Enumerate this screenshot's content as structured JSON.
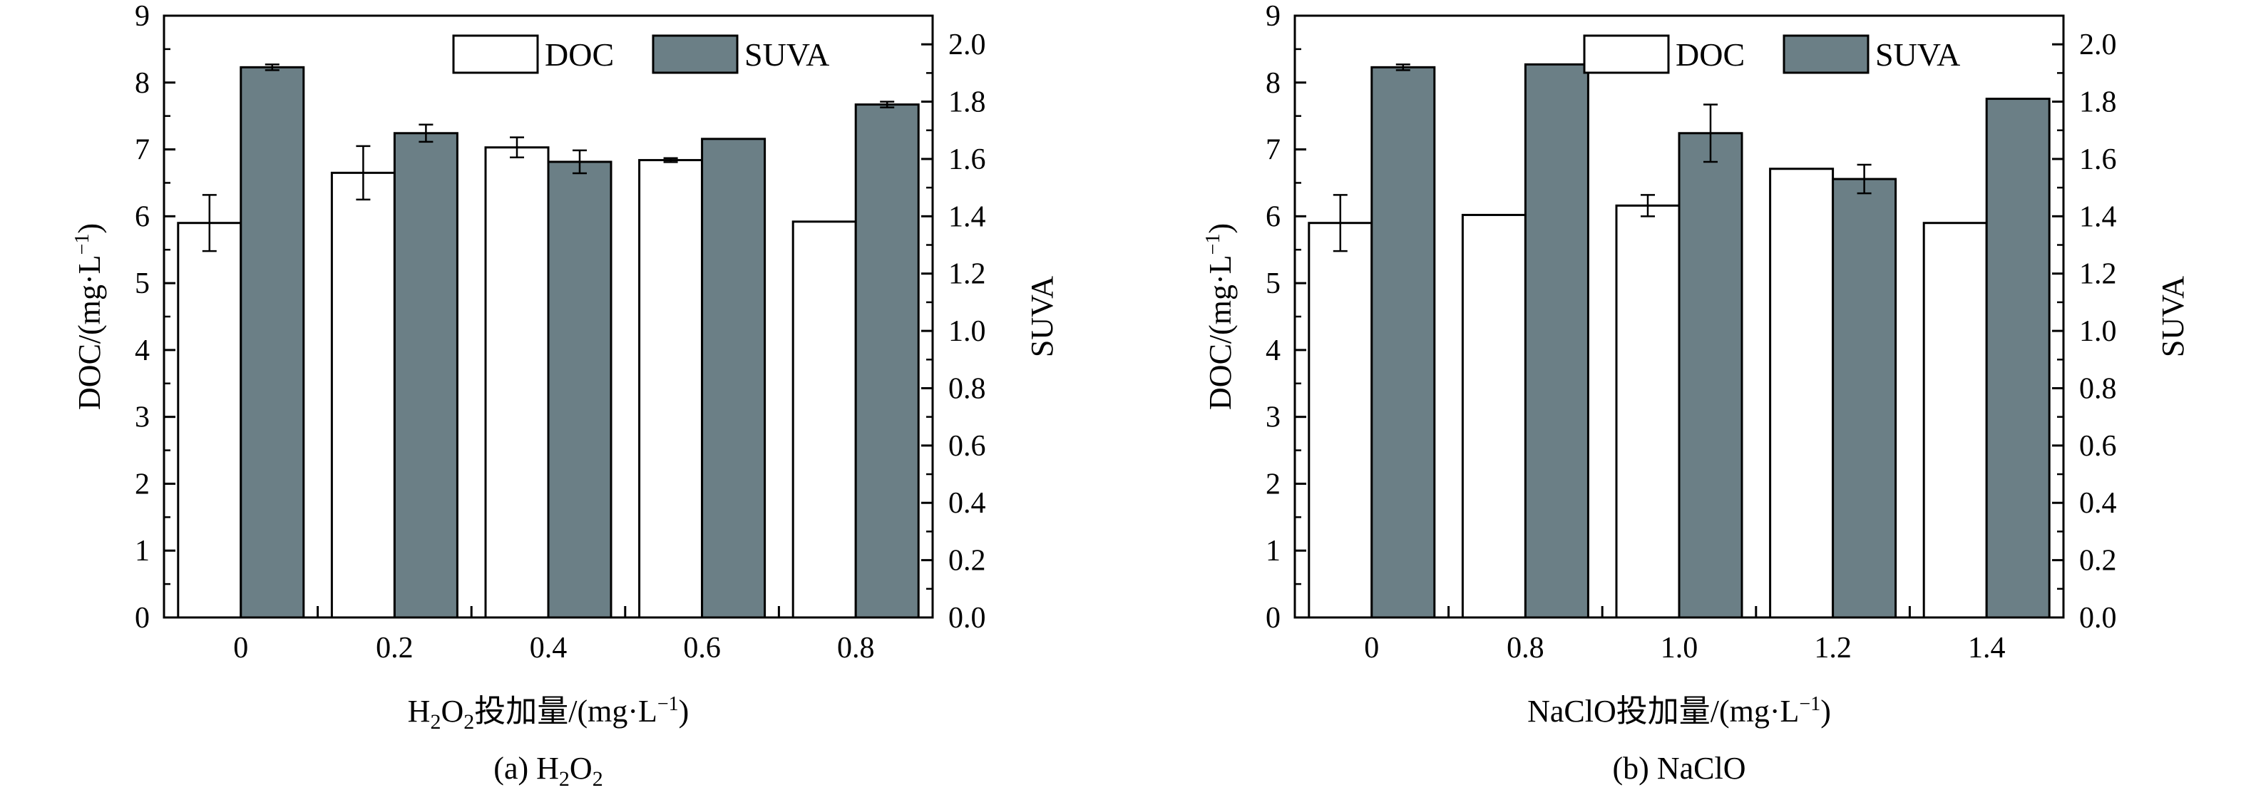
{
  "colors": {
    "doc": "#ffffff",
    "suva": "#6b7f86",
    "stroke": "#000000"
  },
  "chart_data": [
    {
      "type": "bar",
      "caption": "(a) H2O2",
      "xlabel": "H2O2投加量/(mg·L−1)",
      "ylabel": "DOC/(mg·L−1)",
      "y2label": "SUVA",
      "categories": [
        "0",
        "0.2",
        "0.4",
        "0.6",
        "0.8"
      ],
      "ylim": [
        0,
        9
      ],
      "y2lim": [
        0,
        2.1
      ],
      "yticks": [
        "0",
        "1",
        "2",
        "3",
        "4",
        "5",
        "6",
        "7",
        "8",
        "9"
      ],
      "y2ticks": [
        "0.0",
        "0.2",
        "0.4",
        "0.6",
        "0.8",
        "1.0",
        "1.2",
        "1.4",
        "1.6",
        "1.8",
        "2.0"
      ],
      "legend": "top-right",
      "grid": false,
      "series": [
        {
          "name": "DOC",
          "axis": "left",
          "values": [
            5.9,
            6.65,
            7.03,
            6.84,
            5.92
          ],
          "errors": [
            0.42,
            0.4,
            0.15,
            0.03,
            0
          ]
        },
        {
          "name": "SUVA",
          "axis": "right",
          "values": [
            1.92,
            1.69,
            1.59,
            1.67,
            1.79
          ],
          "errors": [
            0.01,
            0.03,
            0.04,
            0,
            0.01
          ]
        }
      ]
    },
    {
      "type": "bar",
      "caption": "(b) NaClO",
      "xlabel": "NaClO投加量/(mg·L−1)",
      "ylabel": "DOC/(mg·L−1)",
      "y2label": "SUVA",
      "categories": [
        "0",
        "0.8",
        "1.0",
        "1.2",
        "1.4"
      ],
      "ylim": [
        0,
        9
      ],
      "y2lim": [
        0,
        2.1
      ],
      "yticks": [
        "0",
        "1",
        "2",
        "3",
        "4",
        "5",
        "6",
        "7",
        "8",
        "9"
      ],
      "y2ticks": [
        "0.0",
        "0.2",
        "0.4",
        "0.6",
        "0.8",
        "1.0",
        "1.2",
        "1.4",
        "1.6",
        "1.8",
        "2.0"
      ],
      "legend": "top-right",
      "grid": false,
      "series": [
        {
          "name": "DOC",
          "axis": "left",
          "values": [
            5.9,
            6.02,
            6.16,
            6.71,
            5.9
          ],
          "errors": [
            0.42,
            0,
            0.16,
            0,
            0
          ]
        },
        {
          "name": "SUVA",
          "axis": "right",
          "values": [
            1.92,
            1.93,
            1.69,
            1.53,
            1.81
          ],
          "errors": [
            0.01,
            0,
            0.1,
            0.05,
            0
          ]
        }
      ]
    }
  ]
}
